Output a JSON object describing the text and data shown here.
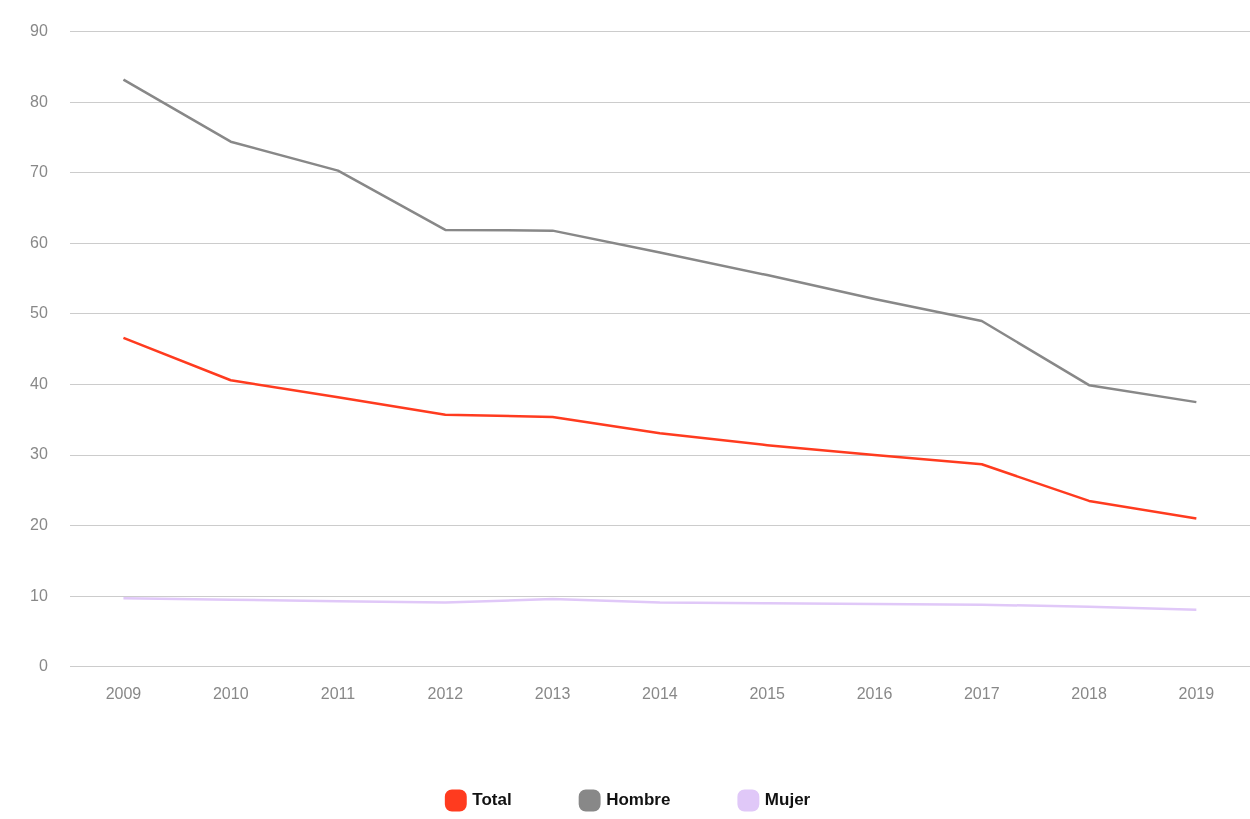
{
  "chart_data": {
    "type": "line",
    "categories": [
      "2009",
      "2010",
      "2011",
      "2012",
      "2013",
      "2014",
      "2015",
      "2016",
      "2017",
      "2018",
      "2019"
    ],
    "series": [
      {
        "name": "Total",
        "color": "#ff3b1f",
        "values": [
          46.6,
          40.6,
          38.2,
          35.7,
          35.4,
          33.1,
          31.4,
          30.0,
          28.7,
          23.5,
          21.0
        ]
      },
      {
        "name": "Hombre",
        "color": "#888888",
        "values": [
          83.2,
          74.4,
          70.3,
          61.9,
          61.8,
          58.7,
          55.5,
          52.1,
          49.0,
          39.9,
          37.5
        ]
      },
      {
        "name": "Mujer",
        "color": "#e0c8f8",
        "values": [
          9.7,
          9.5,
          9.3,
          9.1,
          9.6,
          9.1,
          9.0,
          8.9,
          8.8,
          8.5,
          8.1
        ]
      }
    ],
    "ylim": [
      0,
      90
    ],
    "yticks": [
      0,
      10,
      20,
      30,
      40,
      50,
      60,
      70,
      80,
      90
    ],
    "grid": "y",
    "legend": "bottom",
    "marker": "none",
    "line_style": "solid"
  }
}
